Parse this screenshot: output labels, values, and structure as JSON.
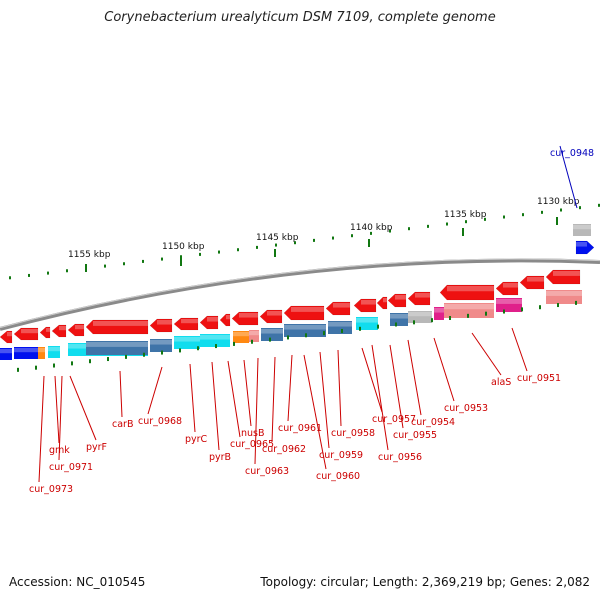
{
  "title": "Corynebacterium urealyticum DSM 7109, complete genome",
  "footer": {
    "accession": "Accession: NC_010545",
    "topology": "Topology: circular; Length: 2,369,219 bp; Genes: 2,082"
  },
  "colors": {
    "forward_cds": "#ee1111",
    "reverse_cds": "#ee1111",
    "backbone": "#888888",
    "scale_tick": "#117711",
    "label": "#cc0000",
    "label_highlight": "#0000bb",
    "blue": "#0011ee",
    "cyan": "#11ddee",
    "steel": "#3f74a8",
    "orange": "#ff8811",
    "pink": "#f08a8a",
    "magenta": "#e0208a",
    "grey": "#b8b8b8"
  },
  "scale_labels": [
    "1155 kbp",
    "1150 kbp",
    "1145 kbp",
    "1140 kbp",
    "1135 kbp",
    "1130 kbp"
  ],
  "gene_labels": [
    "cur_0948",
    "cur_0951",
    "alaS",
    "cur_0953",
    "cur_0954",
    "cur_0955",
    "cur_0956",
    "cur_0957",
    "cur_0958",
    "cur_0959",
    "cur_0960",
    "cur_0961",
    "cur_0962",
    "cur_0963",
    "nusB",
    "cur_0965",
    "pyrB",
    "pyrC",
    "cur_0968",
    "carB",
    "pyrF",
    "gmk",
    "cur_0971",
    "cur_0973"
  ]
}
